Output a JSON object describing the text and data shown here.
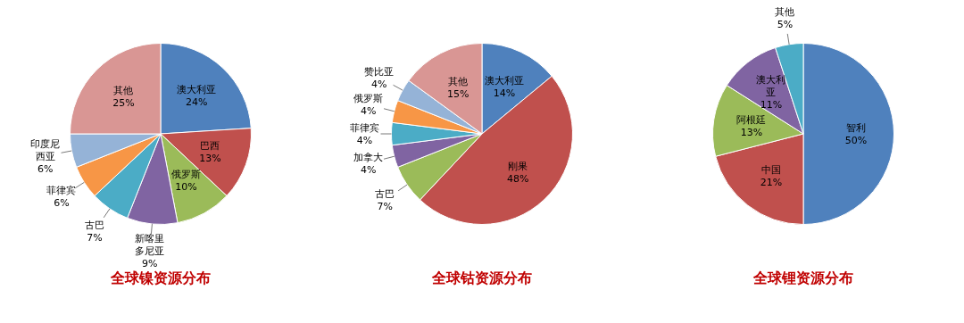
{
  "chart_data": [
    {
      "type": "pie",
      "title": "全球镍资源分布",
      "categories": [
        "澳大利亚",
        "巴西",
        "俄罗斯",
        "新喀里多尼亚",
        "古巴",
        "菲律宾",
        "印度尼西亚",
        "其他"
      ],
      "values": [
        24,
        13,
        10,
        9,
        7,
        6,
        6,
        25
      ],
      "value_labels": [
        "24%",
        "13%",
        "10%",
        "9%",
        "7%",
        "6%",
        "6%",
        "25%"
      ],
      "colors": [
        "#4f81bd",
        "#c0504d",
        "#9bbb59",
        "#8064a2",
        "#4bacc6",
        "#f79646",
        "#95b3d7",
        "#d99694"
      ],
      "legend": false
    },
    {
      "type": "pie",
      "title": "全球钴资源分布",
      "categories": [
        "澳大利亚",
        "刚果",
        "古巴",
        "加拿大",
        "菲律宾",
        "俄罗斯",
        "赞比亚",
        "其他"
      ],
      "values": [
        14,
        48,
        7,
        4,
        4,
        4,
        4,
        15
      ],
      "value_labels": [
        "14%",
        "48%",
        "7%",
        "4%",
        "4%",
        "4%",
        "4%",
        "15%"
      ],
      "colors": [
        "#4f81bd",
        "#c0504d",
        "#9bbb59",
        "#8064a2",
        "#4bacc6",
        "#f79646",
        "#95b3d7",
        "#d99694"
      ],
      "legend": false
    },
    {
      "type": "pie",
      "title": "全球锂资源分布",
      "categories": [
        "智利",
        "中国",
        "阿根廷",
        "澳大利亚",
        "其他"
      ],
      "values": [
        50,
        21,
        13,
        11,
        5
      ],
      "value_labels": [
        "50%",
        "21%",
        "13%",
        "11%",
        "5%"
      ],
      "colors": [
        "#4f81bd",
        "#c0504d",
        "#9bbb59",
        "#8064a2",
        "#4bacc6"
      ],
      "legend": false
    }
  ]
}
